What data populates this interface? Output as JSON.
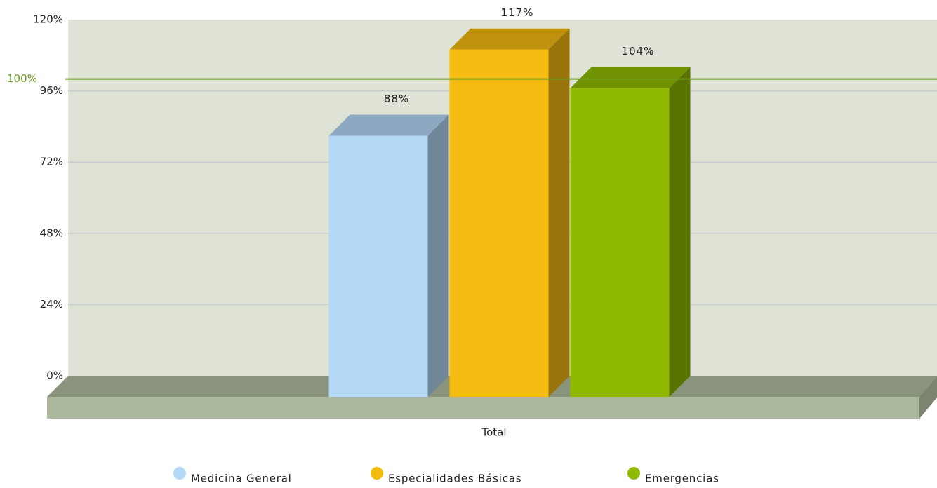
{
  "chart_data": {
    "type": "bar",
    "categories": [
      "Total"
    ],
    "series": [
      {
        "name": "Medicina General",
        "color": "#b3d9f7",
        "values": [
          88
        ],
        "value_labels": [
          "88%"
        ]
      },
      {
        "name": "Especialidades Básicas",
        "color": "#f5bb11",
        "values": [
          117
        ],
        "value_labels": [
          "117%"
        ]
      },
      {
        "name": "Emergencias",
        "color": "#8fba00",
        "values": [
          104
        ],
        "value_labels": [
          "104%"
        ]
      }
    ],
    "ylim": [
      0,
      120
    ],
    "yticks": [
      {
        "value": 0,
        "label": "0%"
      },
      {
        "value": 24,
        "label": "24%"
      },
      {
        "value": 48,
        "label": "48%"
      },
      {
        "value": 72,
        "label": "72%"
      },
      {
        "value": 96,
        "label": "96%"
      },
      {
        "value": 120,
        "label": "120%"
      }
    ],
    "trend_line": {
      "value": 100,
      "label": "100%",
      "color": "#6b9e1f"
    },
    "grid": true,
    "legend": "bottom"
  }
}
